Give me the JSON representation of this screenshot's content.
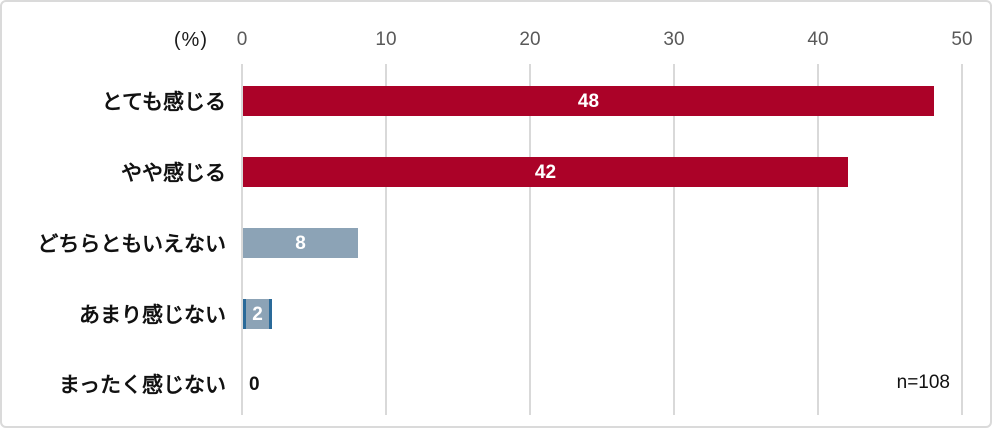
{
  "chart": {
    "percent_label": "(%)",
    "n_label": "n=108"
  },
  "chart_data": {
    "type": "bar",
    "orientation": "horizontal",
    "title": "",
    "xlabel": "(%)",
    "ylabel": "",
    "categories": [
      "とても感じる",
      "やや感じる",
      "どちらともいえない",
      "あまり感じない",
      "まったく感じない"
    ],
    "values": [
      48,
      42,
      8,
      2,
      0
    ],
    "x_ticks": [
      0,
      10,
      20,
      30,
      40,
      50
    ],
    "xlim": [
      0,
      50
    ],
    "unit": "%",
    "n": 108,
    "annotation": "n=108",
    "grid": true,
    "legend": "none",
    "bar_colors": [
      "#AB0228",
      "#AB0228",
      "#8CA3B6",
      "#8CA3B6",
      null
    ],
    "highlight_border": {
      "index": 3,
      "color": "#2A6A99"
    },
    "value_label_inside_color": "#FFFFFF",
    "value_label_outside_color": "#111111"
  },
  "colors": {
    "crimson": "#AB0228",
    "blue_gray": "#8CA3B6",
    "border_blue": "#2A6A99",
    "gridline": "#D9D9D9",
    "tick_text": "#595959",
    "label_text": "#111111"
  }
}
